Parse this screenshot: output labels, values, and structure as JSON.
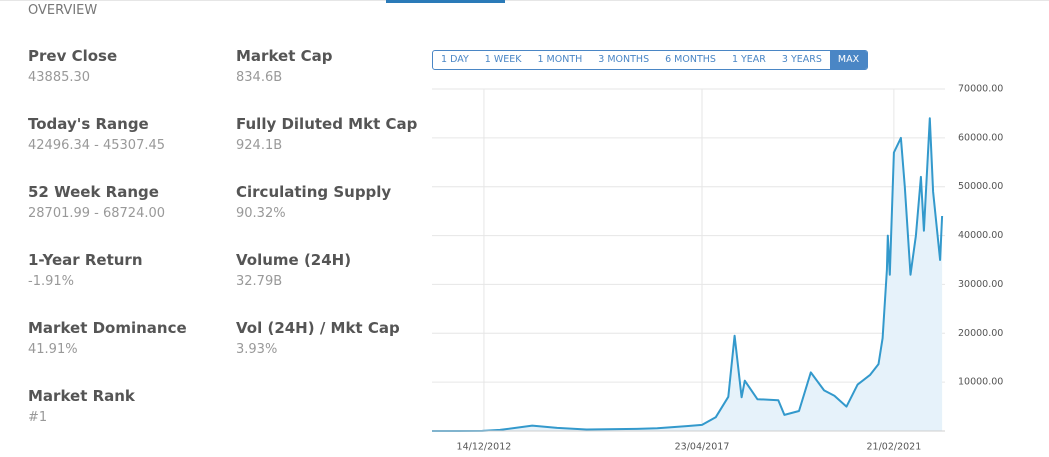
{
  "header": {
    "title": "OVERVIEW"
  },
  "stats": {
    "left": [
      {
        "label": "Prev Close",
        "value": "43885.30"
      },
      {
        "label": "Today's Range",
        "value": "42496.34 - 45307.45"
      },
      {
        "label": "52 Week Range",
        "value": "28701.99 - 68724.00"
      },
      {
        "label": "1-Year Return",
        "value": "-1.91%"
      },
      {
        "label": "Market Dominance",
        "value": "41.91%"
      },
      {
        "label": "Market Rank",
        "value": "#1"
      }
    ],
    "right": [
      {
        "label": "Market Cap",
        "value": "834.6B"
      },
      {
        "label": "Fully Diluted Mkt Cap",
        "value": "924.1B"
      },
      {
        "label": "Circulating Supply",
        "value": "90.32%"
      },
      {
        "label": "Volume (24H)",
        "value": "32.79B"
      },
      {
        "label": "Vol (24H) / Mkt Cap",
        "value": "3.93%"
      }
    ]
  },
  "range_buttons": [
    "1 DAY",
    "1 WEEK",
    "1 MONTH",
    "3 MONTHS",
    "6 MONTHS",
    "1 YEAR",
    "3 YEARS",
    "MAX"
  ],
  "range_selected": 7,
  "chart_data": {
    "type": "line",
    "color": "#3399cc",
    "fill": "#e6f2fa",
    "grid": true,
    "x": [
      "01/12/2011",
      "01/06/2012",
      "01/12/2012",
      "10/04/2013",
      "01/12/2013",
      "01/06/2014",
      "01/01/2015",
      "01/01/2016",
      "01/06/2016",
      "01/01/2017",
      "23/04/2017",
      "01/08/2017",
      "01/11/2017",
      "17/12/2017",
      "06/02/2018",
      "01/03/2018",
      "01/06/2018",
      "01/11/2018",
      "15/12/2018",
      "01/04/2019",
      "26/06/2019",
      "01/10/2019",
      "15/12/2019",
      "12/03/2020",
      "01/06/2020",
      "01/09/2020",
      "01/11/2020",
      "01/12/2020",
      "01/01/2021",
      "08/01/2021",
      "22/01/2021",
      "21/02/2021",
      "13/04/2021",
      "12/05/2021",
      "22/06/2021",
      "01/08/2021",
      "06/09/2021",
      "28/09/2021",
      "10/11/2021",
      "04/12/2021",
      "24/01/2022",
      "08/02/2022"
    ],
    "values": [
      3,
      6,
      13,
      230,
      1100,
      640,
      300,
      430,
      580,
      1000,
      1250,
      2800,
      7000,
      19500,
      6900,
      10300,
      6500,
      6300,
      3300,
      4100,
      12000,
      8300,
      7200,
      5000,
      9500,
      11500,
      13700,
      19000,
      33000,
      40000,
      32000,
      57000,
      60000,
      50000,
      32000,
      40000,
      52000,
      41000,
      64000,
      49000,
      35000,
      44000
    ],
    "xlim": [
      "01/12/2011",
      "01/03/2022"
    ],
    "xticks": [
      "14/12/2012",
      "23/04/2017",
      "21/02/2021"
    ],
    "ylim": [
      0,
      70000
    ],
    "yticks": [
      {
        "value": 10000,
        "label": "10000.00"
      },
      {
        "value": 20000,
        "label": "20000.00"
      },
      {
        "value": 30000,
        "label": "30000.00"
      },
      {
        "value": 40000,
        "label": "40000.00"
      },
      {
        "value": 50000,
        "label": "50000.00"
      },
      {
        "value": 60000,
        "label": "60000.00"
      },
      {
        "value": 70000,
        "label": "70000.00"
      }
    ]
  }
}
